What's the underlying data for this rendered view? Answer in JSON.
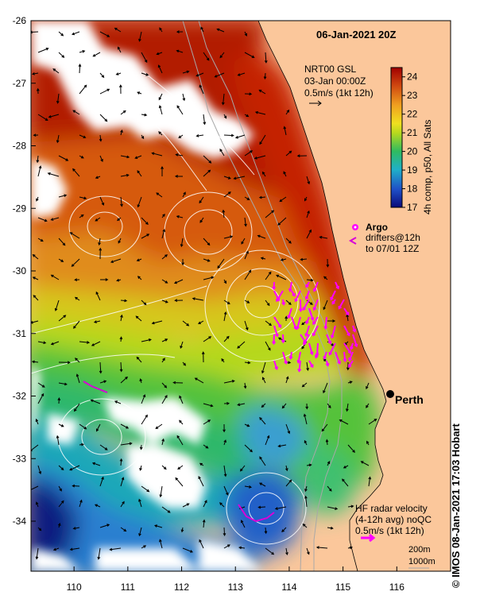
{
  "title": "06-Jan-2021 20Z",
  "axes": {
    "lon_ticks": [
      "110",
      "111",
      "112",
      "113",
      "114",
      "115",
      "116"
    ],
    "lat_ticks": [
      "-26",
      "-27",
      "-28",
      "-29",
      "-30",
      "-31",
      "-32",
      "-33",
      "-34"
    ],
    "lon_range": [
      109.2,
      117.0
    ],
    "lat_range": [
      -26.0,
      -34.8
    ]
  },
  "model_label": {
    "line1": "NRT00 GSL",
    "line2": "03-Jan 00:00Z",
    "line3": "0.5m/s (1kt 12h)"
  },
  "colorbar": {
    "ticks": [
      "24",
      "23",
      "22",
      "21",
      "20",
      "19",
      "18",
      "17"
    ],
    "label": "4h comp, p50, All Sats",
    "range": [
      17,
      24.5
    ]
  },
  "argo_legend": {
    "argo": "Argo",
    "drifters1": "drifters@12h",
    "drifters2": "to 07/01 12Z"
  },
  "city": {
    "name": "Perth",
    "lon": 115.86,
    "lat": -31.95
  },
  "radar_legend": {
    "line1": "HF radar velocity",
    "line2": "(4-12h avg) noQC",
    "line3": "0.5m/s (1kt 12h)"
  },
  "depth_legend": {
    "d200": "200m",
    "d1000": "1000m"
  },
  "credit": "© IMOS 08-Jan-2021 17:03 Hobart",
  "colors": {
    "land": "#fbc79b",
    "radar_arrow": "#ff00ff",
    "drifter": "#d800d8"
  }
}
